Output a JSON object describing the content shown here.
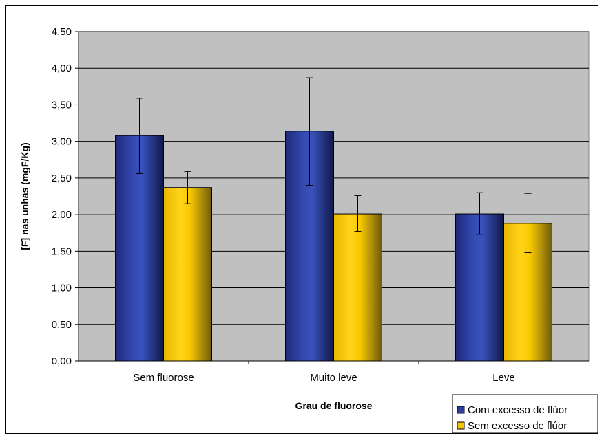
{
  "chart_data": {
    "type": "bar",
    "title": "",
    "xlabel": "Grau de fluorose",
    "ylabel": "[F] nas unhas (mgF/Kg)",
    "categories": [
      "Sem fluorose",
      "Muito leve",
      "Leve"
    ],
    "series": [
      {
        "name": "Com excesso de flúor",
        "values": [
          3.08,
          3.14,
          2.01
        ],
        "error_low": [
          2.56,
          2.4,
          1.73
        ],
        "error_high": [
          3.59,
          3.87,
          2.3
        ],
        "color": "#2B3E9E"
      },
      {
        "name": "Sem excesso de flúor",
        "values": [
          2.37,
          2.01,
          1.88
        ],
        "error_low": [
          2.15,
          1.77,
          1.48
        ],
        "error_high": [
          2.59,
          2.26,
          2.29
        ],
        "color": "#F5C400"
      }
    ],
    "ylim": [
      0,
      4.5
    ],
    "ytick_step": 0.5,
    "yticks": [
      "0,00",
      "0,50",
      "1,00",
      "1,50",
      "2,00",
      "2,50",
      "3,00",
      "3,50",
      "4,00",
      "4,50"
    ],
    "grid": true,
    "plot_background": "#C0C0C0",
    "legend_position": "bottom-right"
  }
}
